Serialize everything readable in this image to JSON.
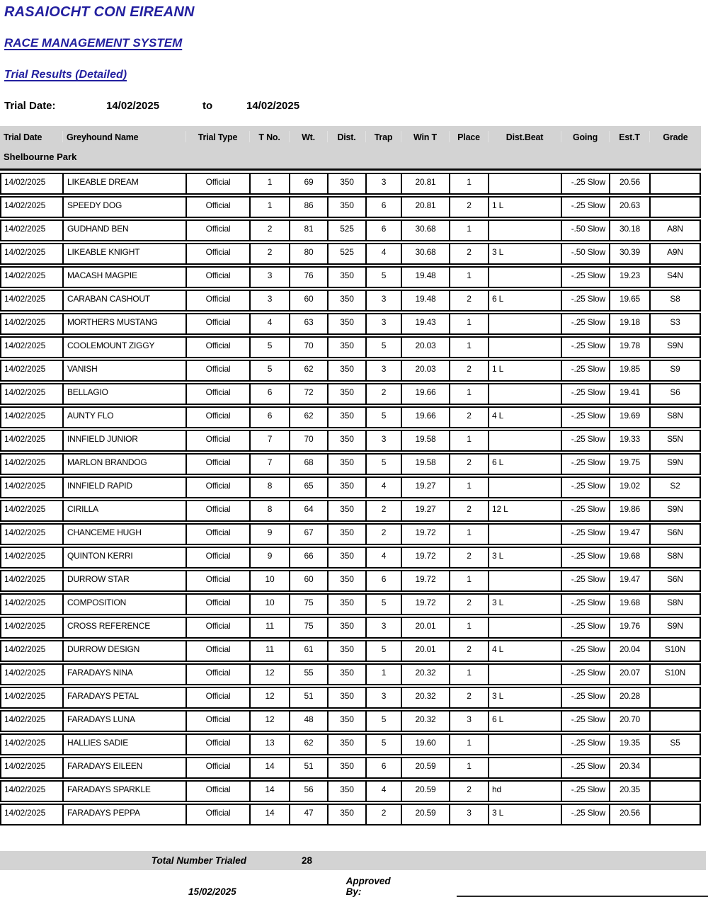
{
  "header": {
    "org_title": "RASAIOCHT CON EIREANN",
    "system_title": "RACE MANAGEMENT SYSTEM",
    "report_title": "Trial Results (Detailed)",
    "trial_date_label": "Trial Date:",
    "date_from": "14/02/2025",
    "to_label": "to",
    "date_to": "14/02/2025"
  },
  "colors": {
    "accent_blue": "#221f9f",
    "band_gray": "#d3d3d3"
  },
  "table": {
    "columns": [
      "Trial Date",
      "Greyhound Name",
      "Trial Type",
      "T No.",
      "Wt.",
      "Dist.",
      "Trap",
      "Win T",
      "Place",
      "Dist.Beat",
      "Going",
      "Est.T",
      "Grade"
    ],
    "venue": "Shelbourne Park",
    "rows": [
      {
        "trial_date": "14/02/2025",
        "name": "LIKEABLE DREAM",
        "trial_type": "Official",
        "t_no": "1",
        "wt": "69",
        "dist": "350",
        "trap": "3",
        "win_t": "20.81",
        "place": "1",
        "dist_beat": "",
        "going": "-.25 Slow",
        "est_t": "20.56",
        "grade": ""
      },
      {
        "trial_date": "14/02/2025",
        "name": "SPEEDY DOG",
        "trial_type": "Official",
        "t_no": "1",
        "wt": "86",
        "dist": "350",
        "trap": "6",
        "win_t": "20.81",
        "place": "2",
        "dist_beat": "1 L",
        "going": "-.25 Slow",
        "est_t": "20.63",
        "grade": ""
      },
      {
        "trial_date": "14/02/2025",
        "name": "GUDHAND BEN",
        "trial_type": "Official",
        "t_no": "2",
        "wt": "81",
        "dist": "525",
        "trap": "6",
        "win_t": "30.68",
        "place": "1",
        "dist_beat": "",
        "going": "-.50 Slow",
        "est_t": "30.18",
        "grade": "A8N"
      },
      {
        "trial_date": "14/02/2025",
        "name": "LIKEABLE KNIGHT",
        "trial_type": "Official",
        "t_no": "2",
        "wt": "80",
        "dist": "525",
        "trap": "4",
        "win_t": "30.68",
        "place": "2",
        "dist_beat": "3 L",
        "going": "-.50 Slow",
        "est_t": "30.39",
        "grade": "A9N"
      },
      {
        "trial_date": "14/02/2025",
        "name": "MACASH MAGPIE",
        "trial_type": "Official",
        "t_no": "3",
        "wt": "76",
        "dist": "350",
        "trap": "5",
        "win_t": "19.48",
        "place": "1",
        "dist_beat": "",
        "going": "-.25 Slow",
        "est_t": "19.23",
        "grade": "S4N"
      },
      {
        "trial_date": "14/02/2025",
        "name": "CARABAN CASHOUT",
        "trial_type": "Official",
        "t_no": "3",
        "wt": "60",
        "dist": "350",
        "trap": "3",
        "win_t": "19.48",
        "place": "2",
        "dist_beat": "6 L",
        "going": "-.25 Slow",
        "est_t": "19.65",
        "grade": "S8"
      },
      {
        "trial_date": "14/02/2025",
        "name": "MORTHERS MUSTANG",
        "trial_type": "Official",
        "t_no": "4",
        "wt": "63",
        "dist": "350",
        "trap": "3",
        "win_t": "19.43",
        "place": "1",
        "dist_beat": "",
        "going": "-.25 Slow",
        "est_t": "19.18",
        "grade": "S3"
      },
      {
        "trial_date": "14/02/2025",
        "name": "COOLEMOUNT ZIGGY",
        "trial_type": "Official",
        "t_no": "5",
        "wt": "70",
        "dist": "350",
        "trap": "5",
        "win_t": "20.03",
        "place": "1",
        "dist_beat": "",
        "going": "-.25 Slow",
        "est_t": "19.78",
        "grade": "S9N"
      },
      {
        "trial_date": "14/02/2025",
        "name": "VANISH",
        "trial_type": "Official",
        "t_no": "5",
        "wt": "62",
        "dist": "350",
        "trap": "3",
        "win_t": "20.03",
        "place": "2",
        "dist_beat": "1 L",
        "going": "-.25 Slow",
        "est_t": "19.85",
        "grade": "S9"
      },
      {
        "trial_date": "14/02/2025",
        "name": "BELLAGIO",
        "trial_type": "Official",
        "t_no": "6",
        "wt": "72",
        "dist": "350",
        "trap": "2",
        "win_t": "19.66",
        "place": "1",
        "dist_beat": "",
        "going": "-.25 Slow",
        "est_t": "19.41",
        "grade": "S6"
      },
      {
        "trial_date": "14/02/2025",
        "name": "AUNTY FLO",
        "trial_type": "Official",
        "t_no": "6",
        "wt": "62",
        "dist": "350",
        "trap": "5",
        "win_t": "19.66",
        "place": "2",
        "dist_beat": "4 L",
        "going": "-.25 Slow",
        "est_t": "19.69",
        "grade": "S8N"
      },
      {
        "trial_date": "14/02/2025",
        "name": "INNFIELD JUNIOR",
        "trial_type": "Official",
        "t_no": "7",
        "wt": "70",
        "dist": "350",
        "trap": "3",
        "win_t": "19.58",
        "place": "1",
        "dist_beat": "",
        "going": "-.25 Slow",
        "est_t": "19.33",
        "grade": "S5N"
      },
      {
        "trial_date": "14/02/2025",
        "name": "MARLON BRANDOG",
        "trial_type": "Official",
        "t_no": "7",
        "wt": "68",
        "dist": "350",
        "trap": "5",
        "win_t": "19.58",
        "place": "2",
        "dist_beat": "6 L",
        "going": "-.25 Slow",
        "est_t": "19.75",
        "grade": "S9N"
      },
      {
        "trial_date": "14/02/2025",
        "name": "INNFIELD RAPID",
        "trial_type": "Official",
        "t_no": "8",
        "wt": "65",
        "dist": "350",
        "trap": "4",
        "win_t": "19.27",
        "place": "1",
        "dist_beat": "",
        "going": "-.25 Slow",
        "est_t": "19.02",
        "grade": "S2"
      },
      {
        "trial_date": "14/02/2025",
        "name": "CIRILLA",
        "trial_type": "Official",
        "t_no": "8",
        "wt": "64",
        "dist": "350",
        "trap": "2",
        "win_t": "19.27",
        "place": "2",
        "dist_beat": "12 L",
        "going": "-.25 Slow",
        "est_t": "19.86",
        "grade": "S9N"
      },
      {
        "trial_date": "14/02/2025",
        "name": "CHANCEME HUGH",
        "trial_type": "Official",
        "t_no": "9",
        "wt": "67",
        "dist": "350",
        "trap": "2",
        "win_t": "19.72",
        "place": "1",
        "dist_beat": "",
        "going": "-.25 Slow",
        "est_t": "19.47",
        "grade": "S6N"
      },
      {
        "trial_date": "14/02/2025",
        "name": "QUINTON KERRI",
        "trial_type": "Official",
        "t_no": "9",
        "wt": "66",
        "dist": "350",
        "trap": "4",
        "win_t": "19.72",
        "place": "2",
        "dist_beat": "3 L",
        "going": "-.25 Slow",
        "est_t": "19.68",
        "grade": "S8N"
      },
      {
        "trial_date": "14/02/2025",
        "name": "DURROW STAR",
        "trial_type": "Official",
        "t_no": "10",
        "wt": "60",
        "dist": "350",
        "trap": "6",
        "win_t": "19.72",
        "place": "1",
        "dist_beat": "",
        "going": "-.25 Slow",
        "est_t": "19.47",
        "grade": "S6N"
      },
      {
        "trial_date": "14/02/2025",
        "name": "COMPOSITION",
        "trial_type": "Official",
        "t_no": "10",
        "wt": "75",
        "dist": "350",
        "trap": "5",
        "win_t": "19.72",
        "place": "2",
        "dist_beat": "3 L",
        "going": "-.25 Slow",
        "est_t": "19.68",
        "grade": "S8N"
      },
      {
        "trial_date": "14/02/2025",
        "name": "CROSS REFERENCE",
        "trial_type": "Official",
        "t_no": "11",
        "wt": "75",
        "dist": "350",
        "trap": "3",
        "win_t": "20.01",
        "place": "1",
        "dist_beat": "",
        "going": "-.25 Slow",
        "est_t": "19.76",
        "grade": "S9N"
      },
      {
        "trial_date": "14/02/2025",
        "name": "DURROW DESIGN",
        "trial_type": "Official",
        "t_no": "11",
        "wt": "61",
        "dist": "350",
        "trap": "5",
        "win_t": "20.01",
        "place": "2",
        "dist_beat": "4 L",
        "going": "-.25 Slow",
        "est_t": "20.04",
        "grade": "S10N"
      },
      {
        "trial_date": "14/02/2025",
        "name": "FARADAYS NINA",
        "trial_type": "Official",
        "t_no": "12",
        "wt": "55",
        "dist": "350",
        "trap": "1",
        "win_t": "20.32",
        "place": "1",
        "dist_beat": "",
        "going": "-.25 Slow",
        "est_t": "20.07",
        "grade": "S10N"
      },
      {
        "trial_date": "14/02/2025",
        "name": "FARADAYS PETAL",
        "trial_type": "Official",
        "t_no": "12",
        "wt": "51",
        "dist": "350",
        "trap": "3",
        "win_t": "20.32",
        "place": "2",
        "dist_beat": "3 L",
        "going": "-.25 Slow",
        "est_t": "20.28",
        "grade": ""
      },
      {
        "trial_date": "14/02/2025",
        "name": "FARADAYS LUNA",
        "trial_type": "Official",
        "t_no": "12",
        "wt": "48",
        "dist": "350",
        "trap": "5",
        "win_t": "20.32",
        "place": "3",
        "dist_beat": "6 L",
        "going": "-.25 Slow",
        "est_t": "20.70",
        "grade": ""
      },
      {
        "trial_date": "14/02/2025",
        "name": "HALLIES SADIE",
        "trial_type": "Official",
        "t_no": "13",
        "wt": "62",
        "dist": "350",
        "trap": "5",
        "win_t": "19.60",
        "place": "1",
        "dist_beat": "",
        "going": "-.25 Slow",
        "est_t": "19.35",
        "grade": "S5"
      },
      {
        "trial_date": "14/02/2025",
        "name": "FARADAYS EILEEN",
        "trial_type": "Official",
        "t_no": "14",
        "wt": "51",
        "dist": "350",
        "trap": "6",
        "win_t": "20.59",
        "place": "1",
        "dist_beat": "",
        "going": "-.25 Slow",
        "est_t": "20.34",
        "grade": ""
      },
      {
        "trial_date": "14/02/2025",
        "name": "FARADAYS SPARKLE",
        "trial_type": "Official",
        "t_no": "14",
        "wt": "56",
        "dist": "350",
        "trap": "4",
        "win_t": "20.59",
        "place": "2",
        "dist_beat": "hd",
        "going": "-.25 Slow",
        "est_t": "20.35",
        "grade": ""
      },
      {
        "trial_date": "14/02/2025",
        "name": "FARADAYS PEPPA",
        "trial_type": "Official",
        "t_no": "14",
        "wt": "47",
        "dist": "350",
        "trap": "2",
        "win_t": "20.59",
        "place": "3",
        "dist_beat": "3 L",
        "going": "-.25 Slow",
        "est_t": "20.56",
        "grade": ""
      }
    ]
  },
  "footer": {
    "total_label": "Total Number Trialed",
    "total_value": "28",
    "report_date": "15/02/2025",
    "approved_label": "Approved By:"
  }
}
